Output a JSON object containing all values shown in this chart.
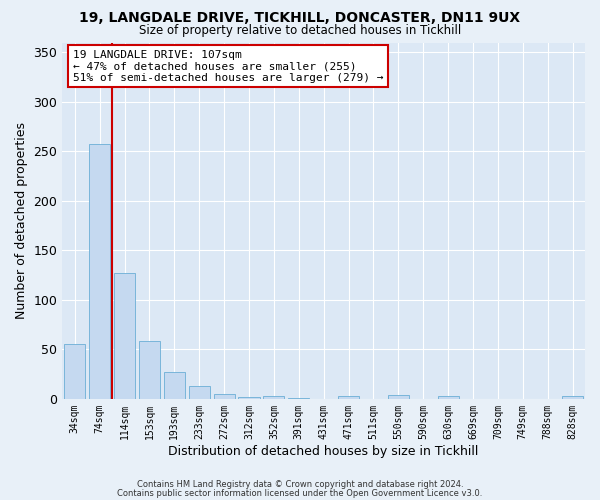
{
  "title": "19, LANGDALE DRIVE, TICKHILL, DONCASTER, DN11 9UX",
  "subtitle": "Size of property relative to detached houses in Tickhill",
  "xlabel": "Distribution of detached houses by size in Tickhill",
  "ylabel": "Number of detached properties",
  "footer_line1": "Contains HM Land Registry data © Crown copyright and database right 2024.",
  "footer_line2": "Contains public sector information licensed under the Open Government Licence v3.0.",
  "bar_labels": [
    "34sqm",
    "74sqm",
    "114sqm",
    "153sqm",
    "193sqm",
    "233sqm",
    "272sqm",
    "312sqm",
    "352sqm",
    "391sqm",
    "431sqm",
    "471sqm",
    "511sqm",
    "550sqm",
    "590sqm",
    "630sqm",
    "669sqm",
    "709sqm",
    "749sqm",
    "788sqm",
    "828sqm"
  ],
  "bar_values": [
    55,
    257,
    127,
    58,
    27,
    13,
    5,
    2,
    3,
    1,
    0,
    3,
    0,
    4,
    0,
    3,
    0,
    0,
    0,
    0,
    3
  ],
  "bar_color": "#c5d9f0",
  "bar_edge_color": "#6baed6",
  "vline_color": "#cc0000",
  "annotation_title": "19 LANGDALE DRIVE: 107sqm",
  "annotation_line1": "← 47% of detached houses are smaller (255)",
  "annotation_line2": "51% of semi-detached houses are larger (279) →",
  "annotation_box_facecolor": "white",
  "annotation_box_edgecolor": "#cc0000",
  "ylim": [
    0,
    360
  ],
  "yticks": [
    0,
    50,
    100,
    150,
    200,
    250,
    300,
    350
  ],
  "background_color": "#e8f0f8",
  "plot_bg_color": "#dce8f5"
}
